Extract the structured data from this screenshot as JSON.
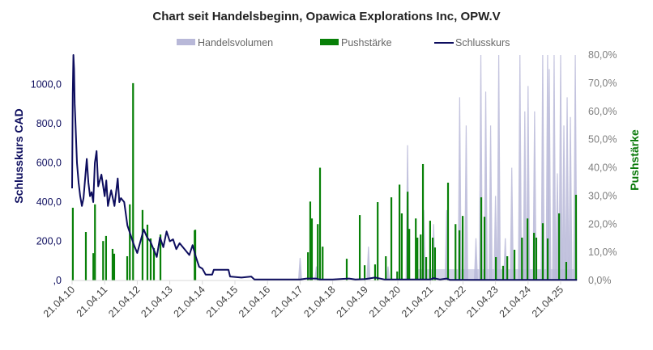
{
  "chart_data": {
    "type": "bar+line",
    "title": "Chart seit Handelsbeginn, Opawica Explorations Inc, OPW.V",
    "legend": [
      "Handelsvolumen",
      "Pushstärke",
      "Schlusskurs"
    ],
    "legend_position": "top",
    "ylabel_left": "Schlusskurs CAD",
    "ylabel_right": "Pushstärke",
    "ylim_left": [
      0,
      1150
    ],
    "ylim_right": [
      0,
      80
    ],
    "y_ticks_left": [
      ",0",
      "200,0",
      "400,0",
      "600,0",
      "800,0",
      "1000,0"
    ],
    "y_ticks_right": [
      "0,0%",
      "10,0%",
      "20,0%",
      "30,0%",
      "40,0%",
      "50,0%",
      "60,0%",
      "70,0%",
      "80,0%"
    ],
    "x_ticks": [
      "21.04.10",
      "21.04.11",
      "21.04.12",
      "21.04.13",
      "21.04.14",
      "21.04.15",
      "21.04.16",
      "21.04.17",
      "21.04.18",
      "21.04.19",
      "21.04.20",
      "21.04.21",
      "21.04.22",
      "21.04.23",
      "21.04.24",
      "21.04.25"
    ],
    "x_unit": "years since 21.04.10",
    "xlim": [
      0,
      15.5
    ],
    "colors": {
      "volume": "#b8b8d8",
      "push": "#088008",
      "price": "#0d0d5e"
    },
    "series": [
      {
        "name": "Schlusskurs",
        "axis": "left",
        "points": [
          [
            0,
            470
          ],
          [
            0.02,
            950
          ],
          [
            0.04,
            1150
          ],
          [
            0.06,
            1080
          ],
          [
            0.08,
            900
          ],
          [
            0.1,
            820
          ],
          [
            0.15,
            600
          ],
          [
            0.2,
            500
          ],
          [
            0.25,
            430
          ],
          [
            0.3,
            380
          ],
          [
            0.35,
            420
          ],
          [
            0.4,
            520
          ],
          [
            0.45,
            620
          ],
          [
            0.5,
            500
          ],
          [
            0.55,
            430
          ],
          [
            0.6,
            450
          ],
          [
            0.65,
            400
          ],
          [
            0.7,
            600
          ],
          [
            0.75,
            660
          ],
          [
            0.8,
            480
          ],
          [
            0.9,
            540
          ],
          [
            1.0,
            430
          ],
          [
            1.05,
            510
          ],
          [
            1.1,
            380
          ],
          [
            1.2,
            460
          ],
          [
            1.3,
            380
          ],
          [
            1.4,
            520
          ],
          [
            1.45,
            400
          ],
          [
            1.5,
            420
          ],
          [
            1.6,
            400
          ],
          [
            1.7,
            280
          ],
          [
            1.8,
            230
          ],
          [
            1.9,
            180
          ],
          [
            2.0,
            140
          ],
          [
            2.1,
            200
          ],
          [
            2.2,
            260
          ],
          [
            2.3,
            220
          ],
          [
            2.4,
            200
          ],
          [
            2.5,
            160
          ],
          [
            2.6,
            120
          ],
          [
            2.7,
            220
          ],
          [
            2.8,
            170
          ],
          [
            2.9,
            250
          ],
          [
            3.0,
            200
          ],
          [
            3.1,
            210
          ],
          [
            3.2,
            160
          ],
          [
            3.3,
            190
          ],
          [
            3.4,
            170
          ],
          [
            3.5,
            150
          ],
          [
            3.6,
            130
          ],
          [
            3.7,
            180
          ],
          [
            3.8,
            120
          ],
          [
            3.9,
            70
          ],
          [
            4.0,
            60
          ],
          [
            4.1,
            30
          ],
          [
            4.3,
            30
          ],
          [
            4.35,
            55
          ],
          [
            4.8,
            55
          ],
          [
            4.85,
            20
          ],
          [
            5.2,
            15
          ],
          [
            5.5,
            20
          ],
          [
            5.6,
            5
          ],
          [
            6.0,
            5
          ],
          [
            7.0,
            5
          ],
          [
            7.2,
            10
          ],
          [
            7.5,
            10
          ],
          [
            7.6,
            5
          ],
          [
            8.0,
            5
          ],
          [
            8.5,
            10
          ],
          [
            8.7,
            5
          ],
          [
            9.0,
            7
          ],
          [
            9.3,
            15
          ],
          [
            9.6,
            5
          ],
          [
            10.0,
            5
          ],
          [
            11.0,
            5
          ],
          [
            11.1,
            12
          ],
          [
            11.3,
            5
          ],
          [
            11.5,
            10
          ],
          [
            11.6,
            3
          ],
          [
            15.5,
            3
          ]
        ]
      },
      {
        "name": "Pushstärke",
        "axis": "right",
        "points": [
          [
            0.02,
            25.8
          ],
          [
            0.42,
            17.2
          ],
          [
            0.65,
            9.7
          ],
          [
            0.7,
            27
          ],
          [
            0.95,
            14
          ],
          [
            1.04,
            15.8
          ],
          [
            1.24,
            11.2
          ],
          [
            1.29,
            9.5
          ],
          [
            1.69,
            8.6
          ],
          [
            1.77,
            27
          ],
          [
            1.87,
            70
          ],
          [
            2.16,
            25
          ],
          [
            2.31,
            19.8
          ],
          [
            2.41,
            14.9
          ],
          [
            2.51,
            11.5
          ],
          [
            2.71,
            16.3
          ],
          [
            3.76,
            17.8
          ],
          [
            3.78,
            18
          ],
          [
            7.24,
            10
          ],
          [
            7.31,
            28
          ],
          [
            7.36,
            22
          ],
          [
            7.54,
            20
          ],
          [
            7.61,
            40
          ],
          [
            7.69,
            12
          ],
          [
            8.43,
            7.7
          ],
          [
            8.83,
            23.2
          ],
          [
            8.98,
            5.4
          ],
          [
            9.3,
            5.7
          ],
          [
            9.38,
            27.8
          ],
          [
            9.63,
            8.6
          ],
          [
            9.8,
            29.5
          ],
          [
            9.98,
            3.2
          ],
          [
            10.05,
            34
          ],
          [
            10.12,
            23.8
          ],
          [
            10.3,
            31.5
          ],
          [
            10.35,
            18.3
          ],
          [
            10.55,
            22
          ],
          [
            10.6,
            15.2
          ],
          [
            10.7,
            16.3
          ],
          [
            10.77,
            41.3
          ],
          [
            10.87,
            8.3
          ],
          [
            10.99,
            21.2
          ],
          [
            11.07,
            15.2
          ],
          [
            11.14,
            11.7
          ],
          [
            11.54,
            34.7
          ],
          [
            11.77,
            20
          ],
          [
            11.89,
            17.8
          ],
          [
            11.99,
            22.9
          ],
          [
            12.56,
            29.5
          ],
          [
            12.66,
            22.6
          ],
          [
            13.01,
            8.3
          ],
          [
            13.23,
            5.2
          ],
          [
            13.36,
            8.6
          ],
          [
            13.58,
            10.9
          ],
          [
            13.81,
            15.2
          ],
          [
            13.98,
            22
          ],
          [
            14.18,
            16.9
          ],
          [
            14.25,
            15.2
          ],
          [
            14.45,
            20.3
          ],
          [
            14.6,
            14.9
          ],
          [
            14.95,
            23.8
          ],
          [
            15.17,
            6.6
          ],
          [
            15.47,
            30.4
          ]
        ]
      },
      {
        "name": "Handelsvolumen",
        "axis": "hidden (scaled to right axis)",
        "points": [
          [
            7.0,
            8
          ],
          [
            7.5,
            5
          ],
          [
            9.1,
            12
          ],
          [
            9.7,
            5
          ],
          [
            10.3,
            48
          ],
          [
            10.8,
            25
          ],
          [
            11.1,
            20
          ],
          [
            11.5,
            25
          ],
          [
            11.9,
            65
          ],
          [
            12.1,
            55
          ],
          [
            12.4,
            15
          ],
          [
            12.55,
            80
          ],
          [
            12.7,
            67
          ],
          [
            12.85,
            55
          ],
          [
            13.0,
            30
          ],
          [
            13.1,
            80
          ],
          [
            13.3,
            15
          ],
          [
            13.5,
            40
          ],
          [
            13.75,
            80
          ],
          [
            13.9,
            60
          ],
          [
            14.0,
            69
          ],
          [
            14.2,
            60
          ],
          [
            14.45,
            80
          ],
          [
            14.6,
            80
          ],
          [
            14.65,
            75
          ],
          [
            14.8,
            80
          ],
          [
            14.9,
            38
          ],
          [
            15.0,
            80
          ],
          [
            15.1,
            55
          ],
          [
            15.2,
            65
          ],
          [
            15.3,
            58
          ],
          [
            15.45,
            80
          ]
        ]
      }
    ]
  }
}
